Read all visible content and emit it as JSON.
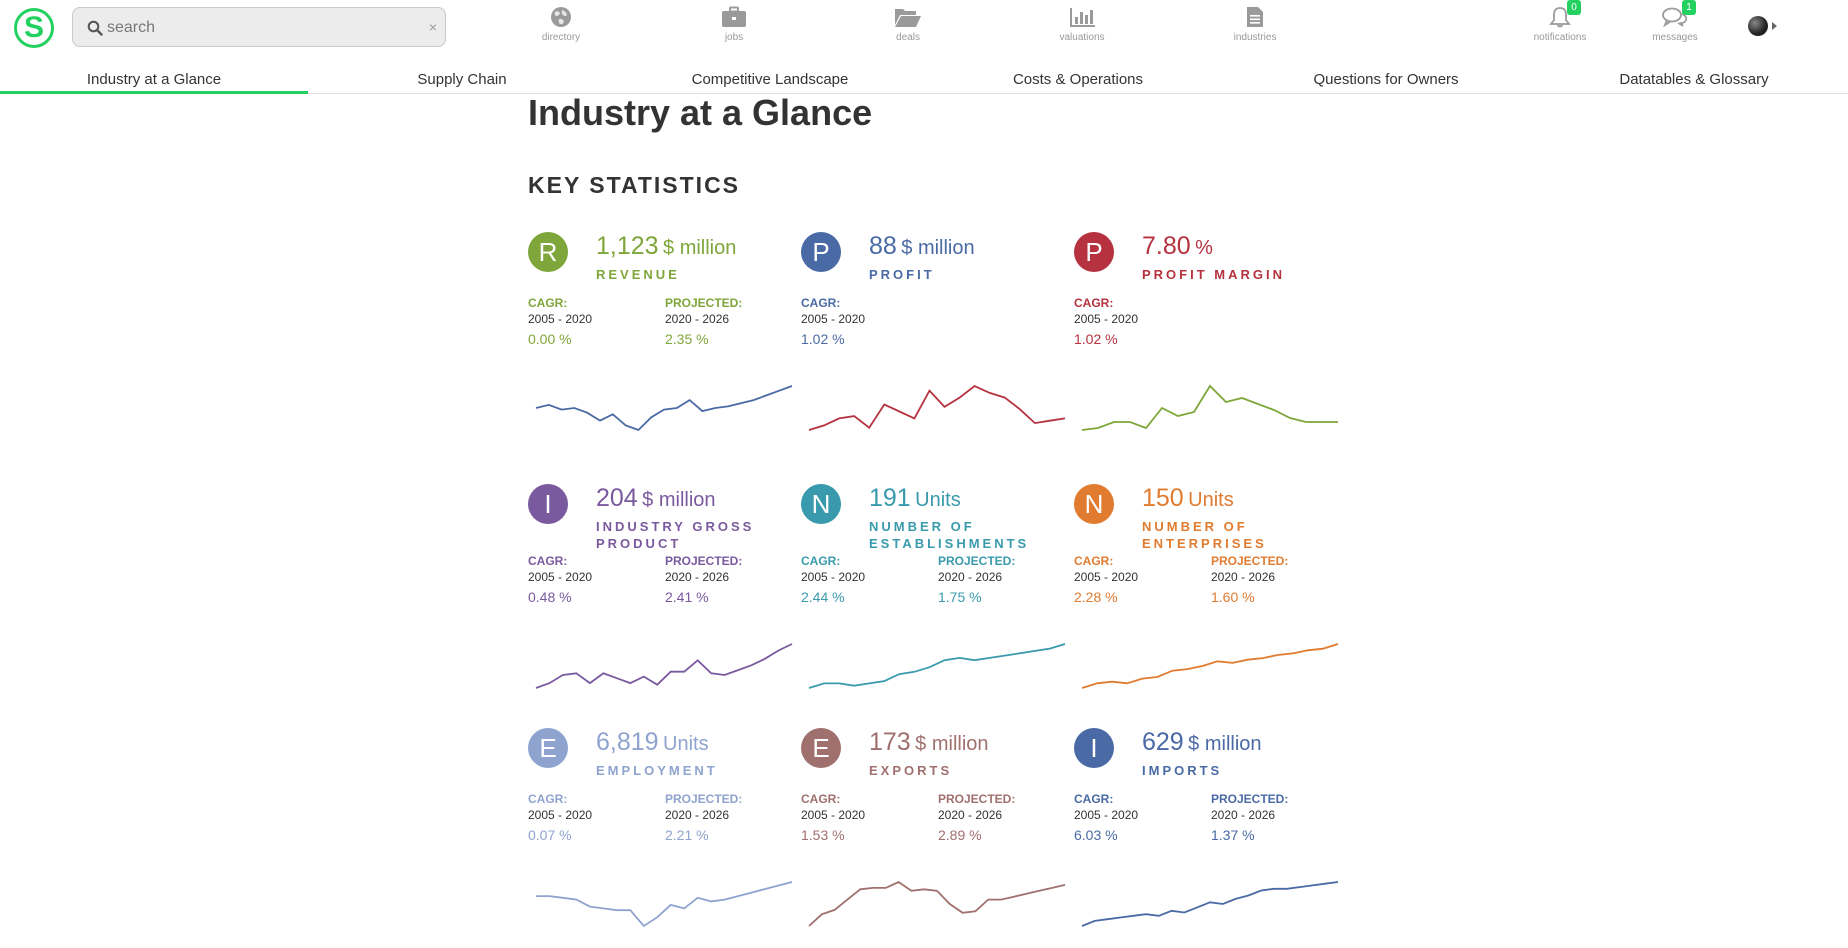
{
  "app": {
    "logo_letter": "S"
  },
  "search": {
    "placeholder": "search",
    "clear": "×"
  },
  "nav": [
    {
      "id": "directory",
      "label": "directory",
      "icon": "globe-icon"
    },
    {
      "id": "jobs",
      "label": "jobs",
      "icon": "briefcase-icon"
    },
    {
      "id": "deals",
      "label": "deals",
      "icon": "folder-open-icon"
    },
    {
      "id": "valuations",
      "label": "valuations",
      "icon": "bar-chart-icon"
    },
    {
      "id": "industries",
      "label": "industries",
      "icon": "document-icon"
    },
    {
      "id": "notifications",
      "label": "notifications",
      "icon": "bell-icon",
      "badge": "0"
    },
    {
      "id": "messages",
      "label": "messages",
      "icon": "chat-icon",
      "badge": "1"
    }
  ],
  "tabs": [
    {
      "label": "Industry at a Glance",
      "active": true
    },
    {
      "label": "Supply Chain"
    },
    {
      "label": "Competitive Landscape"
    },
    {
      "label": "Costs & Operations"
    },
    {
      "label": "Questions for Owners"
    },
    {
      "label": "Datatables & Glossary"
    }
  ],
  "page_title": "Industry at a Glance",
  "section_title": "KEY STATISTICS",
  "stats": [
    {
      "letter": "R",
      "value": "1,123",
      "unit": "$ million",
      "name": "REVENUE",
      "color": "#7fa63a",
      "cagr_label": "CAGR:",
      "cagr_period": "2005 - 2020",
      "cagr": "0.00 %",
      "proj_label": "PROJECTED:",
      "proj_period": "2020 - 2026",
      "proj": "2.35 %",
      "spark_color": "#4a6aa5",
      "spark": [
        16,
        18,
        15,
        16,
        13,
        8,
        12,
        5,
        2,
        10,
        15,
        16,
        21,
        14,
        16,
        17,
        19,
        21,
        24,
        27,
        30
      ]
    },
    {
      "letter": "P",
      "value": "88",
      "unit": "$ million",
      "name": "PROFIT",
      "color": "#4a6aa5",
      "cagr_label": "CAGR:",
      "cagr_period": "2005 - 2020",
      "cagr": "1.02 %",
      "spark_color": "#b5323e",
      "spark": [
        5,
        7,
        10,
        11,
        6,
        16,
        13,
        10,
        22,
        15,
        19,
        24,
        21,
        19,
        14,
        8,
        9,
        10
      ]
    },
    {
      "letter": "P",
      "value": "7.80",
      "unit": "%",
      "name": "PROFIT MARGIN",
      "color": "#b5323e",
      "cagr_label": "CAGR:",
      "cagr_period": "2005 - 2020",
      "cagr": "1.02 %",
      "spark_color": "#7fa63a",
      "spark": [
        2,
        3,
        6,
        6,
        3,
        13,
        9,
        11,
        24,
        16,
        18,
        15,
        12,
        8,
        6,
        6,
        6
      ]
    },
    {
      "letter": "I",
      "value": "204",
      "unit": "$ million",
      "name": "INDUSTRY GROSS PRODUCT",
      "color": "#7a5a9e",
      "cagr_label": "CAGR:",
      "cagr_period": "2005 - 2020",
      "cagr": "0.48 %",
      "proj_label": "PROJECTED:",
      "proj_period": "2020 - 2026",
      "proj": "2.41 %",
      "spark_color": "#7a5a9e",
      "spark": [
        7,
        10,
        15,
        16,
        10,
        16,
        13,
        10,
        14,
        9,
        17,
        17,
        24,
        16,
        15,
        18,
        21,
        25,
        30,
        34
      ]
    },
    {
      "letter": "N",
      "value": "191",
      "unit": "Units",
      "name": "NUMBER OF ESTABLISHMENTS",
      "color": "#3a9aad",
      "cagr_label": "CAGR:",
      "cagr_period": "2005 - 2020",
      "cagr": "2.44 %",
      "proj_label": "PROJECTED:",
      "proj_period": "2020 - 2026",
      "proj": "1.75 %",
      "spark_color": "#3a9aad",
      "spark": [
        4,
        6,
        6,
        5,
        6,
        7,
        10,
        11,
        13,
        16,
        17,
        16,
        17,
        18,
        19,
        20,
        21,
        23
      ]
    },
    {
      "letter": "N",
      "value": "150",
      "unit": "Units",
      "name": "NUMBER OF ENTERPRISES",
      "color": "#e07b30",
      "cagr_label": "CAGR:",
      "cagr_period": "2005 - 2020",
      "cagr": "2.28 %",
      "proj_label": "PROJECTED:",
      "proj_period": "2020 - 2026",
      "proj": "1.60 %",
      "spark_color": "#e07b30",
      "spark": [
        2,
        5,
        6,
        5,
        8,
        9,
        13,
        14,
        16,
        19,
        18,
        20,
        21,
        23,
        24,
        26,
        27,
        30
      ]
    },
    {
      "letter": "E",
      "value": "6,819",
      "unit": "Units",
      "name": "EMPLOYMENT",
      "color": "#8fa3cf",
      "cagr_label": "CAGR:",
      "cagr_period": "2005 - 2020",
      "cagr": "0.07 %",
      "proj_label": "PROJECTED:",
      "proj_period": "2020 - 2026",
      "proj": "2.21 %",
      "spark_color": "#8fa3cf",
      "spark": [
        20,
        20,
        19,
        18,
        14,
        13,
        12,
        12,
        3,
        8,
        15,
        13,
        19,
        17,
        18,
        20,
        22,
        24,
        26,
        28
      ]
    },
    {
      "letter": "E",
      "value": "173",
      "unit": "$ million",
      "name": "EXPORTS",
      "color": "#a0706e",
      "cagr_label": "CAGR:",
      "cagr_period": "2005 - 2020",
      "cagr": "1.53 %",
      "proj_label": "PROJECTED:",
      "proj_period": "2020 - 2026",
      "proj": "2.89 %",
      "spark_color": "#a0706e",
      "spark": [
        4,
        12,
        15,
        22,
        29,
        30,
        30,
        34,
        28,
        29,
        28,
        19,
        13,
        14,
        22,
        22,
        24,
        26,
        28,
        30,
        32
      ]
    },
    {
      "letter": "I",
      "value": "629",
      "unit": "$ million",
      "name": "IMPORTS",
      "color": "#4a6aa5",
      "cagr_label": "CAGR:",
      "cagr_period": "2005 - 2020",
      "cagr": "6.03 %",
      "proj_label": "PROJECTED:",
      "proj_period": "2020 - 2026",
      "proj": "1.37 %",
      "spark_color": "#4a6aa5",
      "spark": [
        3,
        6,
        7,
        8,
        9,
        10,
        9,
        12,
        11,
        14,
        17,
        16,
        19,
        21,
        24,
        25,
        25,
        26,
        27,
        28,
        29
      ]
    }
  ]
}
